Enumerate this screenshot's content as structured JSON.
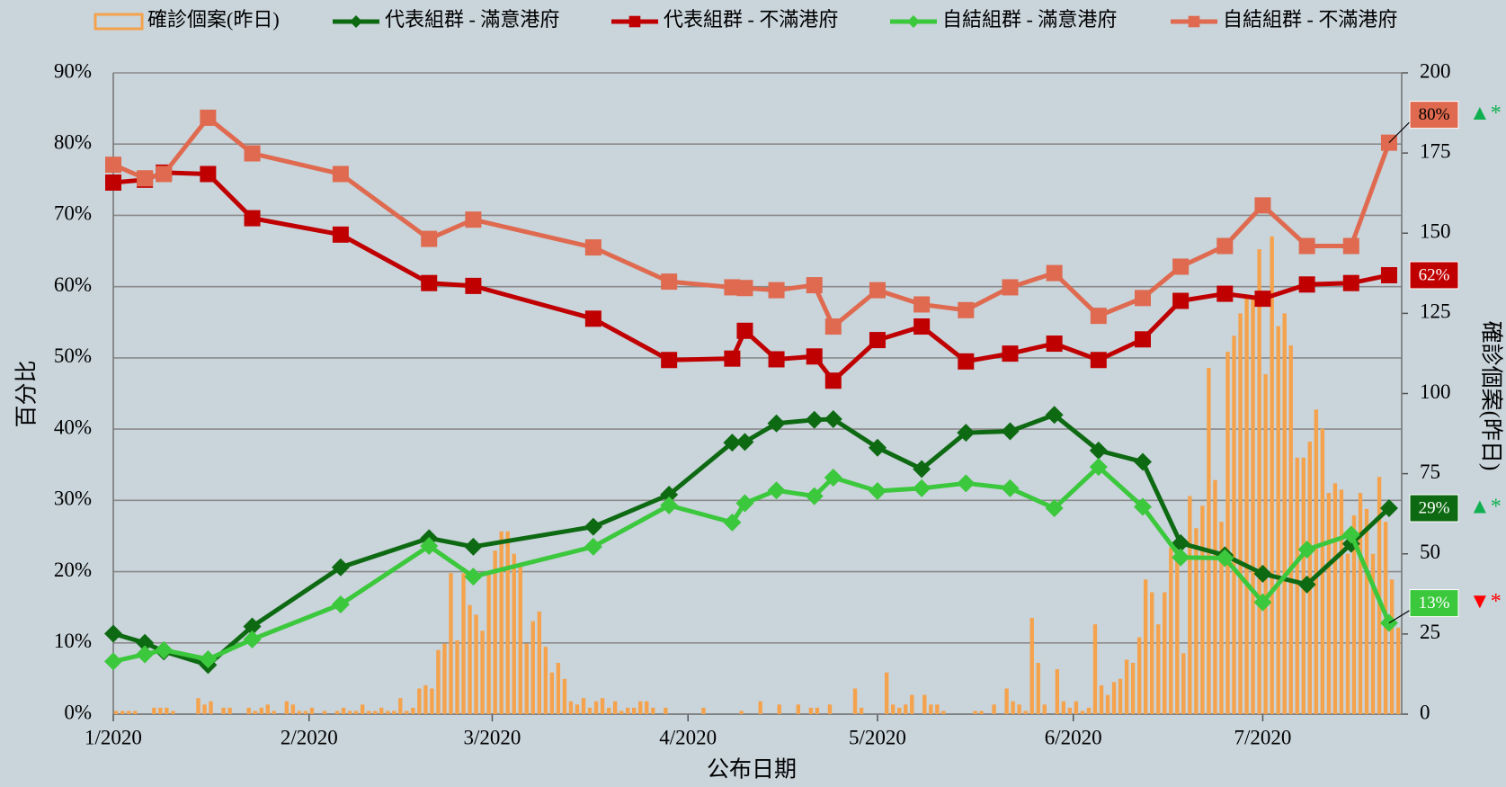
{
  "chart_data": {
    "type": "line",
    "background": "#c9d4db",
    "grid": true,
    "x_title": "公布日期",
    "y_title": "百分比",
    "y2_title": "確診個案(昨日)",
    "xlim": [
      0,
      204
    ],
    "xticks": [
      {
        "value": 0,
        "label": "1/2020"
      },
      {
        "value": 31,
        "label": "2/2020"
      },
      {
        "value": 60,
        "label": "3/2020"
      },
      {
        "value": 91,
        "label": "4/2020"
      },
      {
        "value": 121,
        "label": "5/2020"
      },
      {
        "value": 152,
        "label": "6/2020"
      },
      {
        "value": 182,
        "label": "7/2020"
      }
    ],
    "ylim": [
      0,
      90
    ],
    "yticks": [
      {
        "value": 0,
        "label": "0%"
      },
      {
        "value": 10,
        "label": "10%"
      },
      {
        "value": 20,
        "label": "20%"
      },
      {
        "value": 30,
        "label": "30%"
      },
      {
        "value": 40,
        "label": "40%"
      },
      {
        "value": 50,
        "label": "50%"
      },
      {
        "value": 60,
        "label": "60%"
      },
      {
        "value": 70,
        "label": "70%"
      },
      {
        "value": 80,
        "label": "80%"
      },
      {
        "value": 90,
        "label": "90%"
      }
    ],
    "y2lim": [
      0,
      200
    ],
    "y2ticks": [
      0,
      25,
      50,
      75,
      100,
      125,
      150,
      175,
      200
    ],
    "x": [
      0,
      5,
      8,
      15,
      22,
      36,
      50,
      57,
      76,
      88,
      98,
      100,
      105,
      111,
      114,
      121,
      128,
      135,
      142,
      149,
      156,
      163,
      169,
      176,
      182,
      189,
      196,
      202
    ],
    "series": [
      {
        "name": "確診個案(昨日)",
        "type": "bar",
        "axis": "y2",
        "color": "#f5a24c",
        "x": [
          0,
          1,
          2,
          3,
          4,
          5,
          6,
          7,
          8,
          9,
          10,
          11,
          12,
          13,
          14,
          15,
          16,
          17,
          18,
          19,
          20,
          21,
          22,
          23,
          24,
          25,
          26,
          27,
          28,
          29,
          30,
          31,
          32,
          33,
          34,
          35,
          36,
          37,
          38,
          39,
          40,
          41,
          42,
          43,
          44,
          45,
          46,
          47,
          48,
          49,
          50,
          51,
          52,
          53,
          54,
          55,
          56,
          57,
          58,
          59,
          60,
          61,
          62,
          63,
          64,
          65,
          66,
          67,
          68,
          69,
          70,
          71,
          72,
          73,
          74,
          75,
          76,
          77,
          78,
          79,
          80,
          81,
          82,
          83,
          84,
          85,
          86,
          87,
          88,
          89,
          90,
          91,
          92,
          93,
          94,
          95,
          96,
          97,
          98,
          99,
          100,
          101,
          102,
          103,
          104,
          105,
          106,
          107,
          108,
          109,
          110,
          111,
          112,
          113,
          114,
          115,
          116,
          117,
          118,
          119,
          120,
          121,
          122,
          123,
          124,
          125,
          126,
          127,
          128,
          129,
          130,
          131,
          132,
          133,
          134,
          135,
          136,
          137,
          138,
          139,
          140,
          141,
          142,
          143,
          144,
          145,
          146,
          147,
          148,
          149,
          150,
          151,
          152,
          153,
          154,
          155,
          156,
          157,
          158,
          159,
          160,
          161,
          162,
          163,
          164,
          165,
          166,
          167,
          168,
          169,
          170,
          171,
          172,
          173,
          174,
          175,
          176,
          177,
          178,
          179,
          180,
          181,
          182,
          183,
          184,
          185,
          186,
          187,
          188,
          189,
          190,
          191,
          192,
          193,
          194,
          195,
          196,
          197,
          198,
          199,
          200,
          201,
          202,
          203
        ],
        "values": [
          1,
          1,
          1,
          1,
          0,
          0,
          2,
          2,
          2,
          1,
          0,
          0,
          0,
          5,
          3,
          4,
          0,
          2,
          2,
          0,
          0,
          2,
          1,
          2,
          3,
          1,
          0,
          4,
          3,
          1,
          1,
          2,
          0,
          1,
          0,
          1,
          2,
          1,
          1,
          3,
          1,
          1,
          2,
          1,
          1,
          5,
          1,
          2,
          8,
          9,
          8,
          20,
          22,
          44,
          23,
          44,
          34,
          31,
          26,
          44,
          51,
          57,
          57,
          50,
          47,
          22,
          29,
          32,
          21,
          13,
          16,
          11,
          4,
          3,
          5,
          2,
          4,
          5,
          2,
          4,
          1,
          2,
          2,
          4,
          4,
          2,
          0,
          2,
          0,
          0,
          0,
          0,
          0,
          2,
          0,
          0,
          0,
          0,
          0,
          1,
          0,
          0,
          4,
          0,
          0,
          3,
          0,
          0,
          3,
          0,
          2,
          2,
          0,
          3,
          0,
          0,
          0,
          8,
          2,
          0,
          0,
          0,
          13,
          3,
          2,
          3,
          6,
          0,
          6,
          3,
          3,
          1,
          0,
          0,
          0,
          0,
          1,
          1,
          0,
          3,
          0,
          8,
          4,
          3,
          1,
          30,
          16,
          3,
          0,
          14,
          4,
          2,
          4,
          1,
          2,
          28,
          9,
          6,
          10,
          11,
          17,
          16,
          24,
          42,
          38,
          28,
          38,
          52,
          50,
          19,
          68,
          58,
          65,
          108,
          73,
          60,
          113,
          118,
          125,
          130,
          130,
          145,
          106,
          149,
          121,
          125,
          115,
          80,
          80,
          85,
          95,
          89,
          69,
          72,
          70,
          50,
          62,
          69,
          64,
          50,
          74,
          60,
          42,
          27
        ]
      },
      {
        "name": "代表組群 - 滿意港府",
        "type": "line",
        "marker": "diamond",
        "color": "#0e6a12",
        "values": [
          11.3,
          10.0,
          8.8,
          6.9,
          12.3,
          20.6,
          24.7,
          23.5,
          26.3,
          30.8,
          38.1,
          38.2,
          40.8,
          41.3,
          41.4,
          37.4,
          34.4,
          39.5,
          39.7,
          42.0,
          37.0,
          35.4,
          24.0,
          22.3,
          19.7,
          18.2,
          23.9,
          28.9
        ],
        "value_labels": [
          null,
          null,
          null,
          null,
          null,
          null,
          null,
          null,
          null,
          null,
          null,
          null,
          null,
          null,
          null,
          null,
          null,
          null,
          null,
          null,
          null,
          null,
          null,
          null,
          null,
          null,
          null,
          "29%"
        ]
      },
      {
        "name": "代表組群 - 不滿港府",
        "type": "line",
        "marker": "square",
        "color": "#c00000",
        "values": [
          74.6,
          75.0,
          76.0,
          75.8,
          69.6,
          67.3,
          60.5,
          60.1,
          55.5,
          49.7,
          49.9,
          53.8,
          49.8,
          50.2,
          46.8,
          52.5,
          54.4,
          49.5,
          50.6,
          52.0,
          49.7,
          52.6,
          58.0,
          59.0,
          58.3,
          60.3,
          60.5,
          61.6
        ],
        "value_labels": [
          null,
          null,
          null,
          null,
          null,
          null,
          null,
          null,
          null,
          null,
          null,
          null,
          null,
          null,
          null,
          null,
          null,
          null,
          null,
          null,
          null,
          null,
          null,
          null,
          null,
          null,
          null,
          "62%"
        ]
      },
      {
        "name": "自結組群 - 滿意港府",
        "type": "line",
        "marker": "diamond",
        "color": "#3cc83c",
        "values": [
          7.4,
          8.4,
          9.0,
          7.7,
          10.5,
          15.4,
          23.6,
          19.3,
          23.5,
          29.3,
          26.9,
          29.6,
          31.4,
          30.6,
          33.2,
          31.3,
          31.7,
          32.4,
          31.7,
          28.9,
          34.7,
          29.1,
          22.0,
          21.9,
          15.7,
          23.1,
          25.2,
          12.8
        ],
        "value_labels": [
          null,
          null,
          null,
          null,
          null,
          null,
          null,
          null,
          null,
          null,
          null,
          null,
          null,
          null,
          null,
          null,
          null,
          null,
          null,
          null,
          null,
          null,
          null,
          null,
          null,
          null,
          null,
          "13%"
        ]
      },
      {
        "name": "自結組群 - 不滿港府",
        "type": "line",
        "marker": "square",
        "color": "#df6a4f",
        "values": [
          77.1,
          75.2,
          75.8,
          83.7,
          78.7,
          75.8,
          66.7,
          69.4,
          65.5,
          60.7,
          59.9,
          59.8,
          59.5,
          60.2,
          54.4,
          59.5,
          57.5,
          56.7,
          59.9,
          61.9,
          55.9,
          58.4,
          62.8,
          65.7,
          71.4,
          65.7,
          65.7,
          80.2
        ],
        "value_labels": [
          null,
          null,
          null,
          null,
          null,
          null,
          null,
          null,
          null,
          null,
          null,
          null,
          null,
          null,
          null,
          null,
          null,
          null,
          null,
          null,
          null,
          null,
          null,
          null,
          null,
          null,
          null,
          "80%"
        ]
      }
    ],
    "annotations": [
      {
        "text": "▲*",
        "color": "#10b050"
      },
      {
        "text": "▲*",
        "color": "#10b050"
      },
      {
        "text": "▼*",
        "color": "#ff0000"
      }
    ]
  }
}
